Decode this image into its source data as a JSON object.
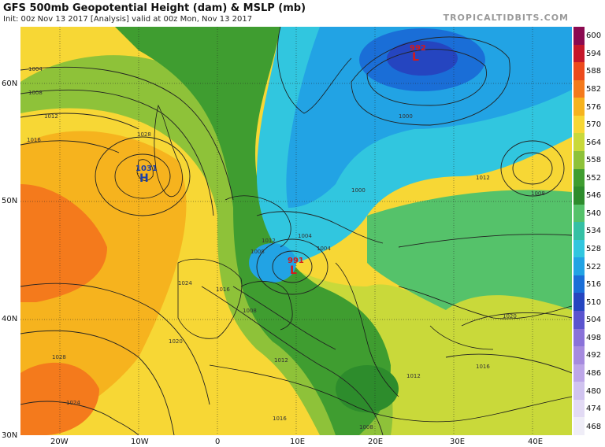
{
  "header": {
    "title": "GFS 500mb Geopotential Height (dam) & MSLP (mb)",
    "subtitle": "Init: 00z Nov 13 2017   [Analysis]   valid at 00z Mon, Nov 13 2017",
    "brand": "TROPICALTIDBITS.COM"
  },
  "axes": {
    "lat_labels": [
      "60N",
      "50N",
      "40N",
      "30N"
    ],
    "lon_labels": [
      "20W",
      "10W",
      "0",
      "10E",
      "20E",
      "30E",
      "40E"
    ]
  },
  "colorbar": {
    "levels": [
      "600",
      "594",
      "588",
      "582",
      "576",
      "570",
      "564",
      "558",
      "552",
      "546",
      "540",
      "534",
      "528",
      "522",
      "516",
      "510",
      "504",
      "498",
      "492",
      "486",
      "480",
      "474",
      "468"
    ],
    "colors": [
      "#8b0a50",
      "#c5172a",
      "#ec4a1c",
      "#f47a1c",
      "#f6b31e",
      "#f7d735",
      "#c9d93a",
      "#8ec239",
      "#3f9d30",
      "#2d8c2c",
      "#55c26a",
      "#35c0a4",
      "#31c6df",
      "#22a3e4",
      "#1a6ed7",
      "#2545c0",
      "#5b54cf",
      "#8a72d9",
      "#a68bdf",
      "#bda6e8",
      "#d0c3ef",
      "#e2daf4",
      "#efedf7"
    ]
  },
  "markers": {
    "lows": [
      {
        "letter": "L",
        "value": "992"
      },
      {
        "letter": "L",
        "value": "991"
      }
    ],
    "highs": [
      {
        "letter": "H",
        "value": "1031"
      }
    ]
  },
  "isobar_labels": [
    "1004",
    "1008",
    "1012",
    "1016",
    "1028",
    "1024",
    "1020",
    "1016",
    "1012",
    "1008",
    "1004",
    "1000",
    "1004",
    "1008",
    "1012",
    "1016",
    "1020",
    "1016",
    "1012",
    "1008",
    "1000",
    "1008",
    "1012",
    "1028",
    "1024"
  ]
}
